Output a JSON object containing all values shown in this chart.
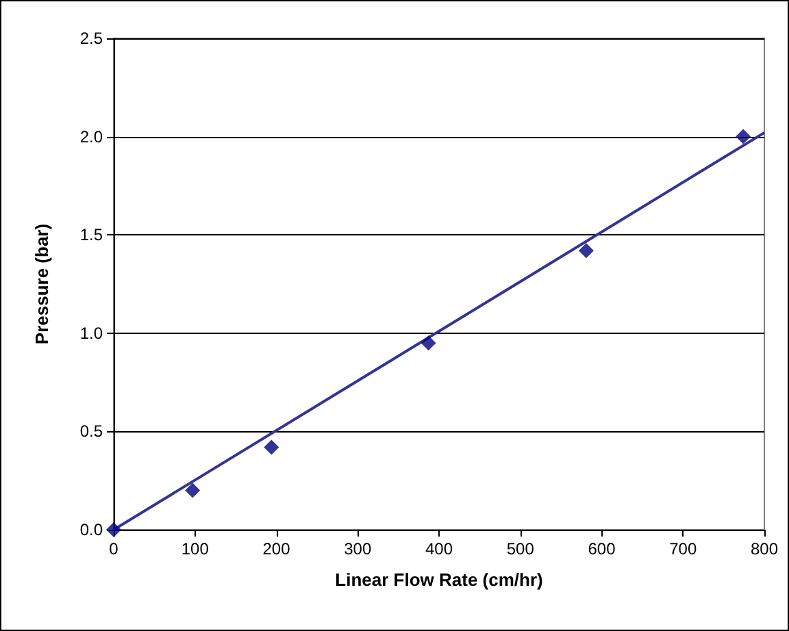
{
  "chart_data": {
    "type": "scatter",
    "xlabel": "Linear Flow Rate (cm/hr)",
    "ylabel": "Pressure (bar)",
    "series": [
      {
        "color": "#000080",
        "x": [
          0,
          97,
          194,
          387,
          581,
          774
        ],
        "values": [
          0,
          0.2,
          0.42,
          0.95,
          1.42,
          2.0
        ]
      },
      {
        "type": "line",
        "color": "#333399",
        "x": [
          0,
          800
        ],
        "values": [
          0,
          2.02
        ],
        "marker": "none"
      }
    ],
    "marker": "diamond",
    "xlim": [
      0,
      800
    ],
    "xticks": [
      0,
      100,
      200,
      300,
      400,
      500,
      600,
      700,
      800
    ],
    "ylim": [
      0,
      2.5
    ],
    "yticks": [
      {
        "value": 0,
        "label": "0.0"
      },
      {
        "value": 0.5,
        "label": "0.5"
      },
      {
        "value": 1,
        "label": "1.0"
      },
      {
        "value": 1.5,
        "label": "1.5"
      },
      {
        "value": 2,
        "label": "2.0"
      },
      {
        "value": 2.5,
        "label": "2.5"
      }
    ],
    "grid": "y"
  }
}
